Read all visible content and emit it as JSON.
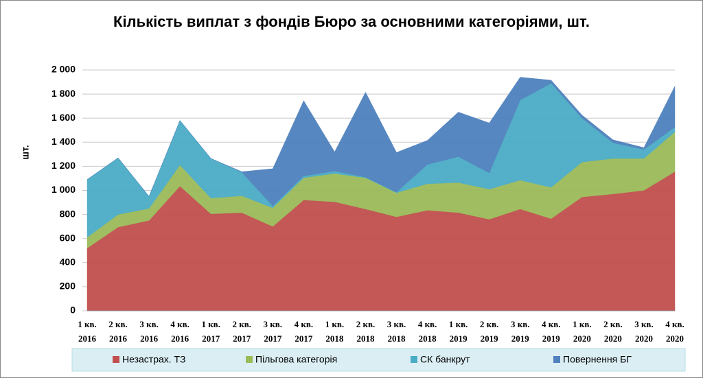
{
  "chart_data": {
    "type": "stacked_area",
    "title": "Кількість виплат з фондів Бюро за основними категоріями, шт.",
    "y_label": "шт.",
    "categories": [
      [
        "1 кв.",
        "2016"
      ],
      [
        "2 кв.",
        "2016"
      ],
      [
        "3 кв.",
        "2016"
      ],
      [
        "4 кв.",
        "2016"
      ],
      [
        "1 кв.",
        "2017"
      ],
      [
        "2 кв.",
        "2017"
      ],
      [
        "3 кв.",
        "2017"
      ],
      [
        "4 кв.",
        "2017"
      ],
      [
        "1 кв.",
        "2018"
      ],
      [
        "2 кв.",
        "2018"
      ],
      [
        "3 кв.",
        "2018"
      ],
      [
        "4 кв.",
        "2018"
      ],
      [
        "1 кв.",
        "2019"
      ],
      [
        "2 кв.",
        "2019"
      ],
      [
        "3 кв.",
        "2019"
      ],
      [
        "4 кв.",
        "2019"
      ],
      [
        "1 кв.",
        "2020"
      ],
      [
        "2 кв.",
        "2020"
      ],
      [
        "3 кв.",
        "2020"
      ],
      [
        "4 кв.",
        "2020"
      ]
    ],
    "series": [
      {
        "name": "Незастрах. ТЗ",
        "color": "#c0504d",
        "values": [
          520,
          695,
          750,
          1035,
          805,
          815,
          700,
          920,
          905,
          845,
          780,
          835,
          815,
          760,
          845,
          765,
          945,
          970,
          1000,
          1155
        ]
      },
      {
        "name": "Пільгова категорія",
        "color": "#9bbb59",
        "values": [
          90,
          105,
          100,
          175,
          130,
          140,
          155,
          185,
          235,
          260,
          200,
          220,
          250,
          250,
          240,
          260,
          290,
          295,
          265,
          330
        ]
      },
      {
        "name": "СК банкрут",
        "color": "#4bacc6",
        "values": [
          480,
          470,
          100,
          370,
          330,
          195,
          15,
          15,
          20,
          5,
          5,
          160,
          215,
          135,
          665,
          865,
          365,
          130,
          75,
          40
        ]
      },
      {
        "name": "Повернення БГ",
        "color": "#4f81bd",
        "values": [
          0,
          0,
          0,
          0,
          0,
          5,
          310,
          625,
          160,
          705,
          330,
          200,
          370,
          415,
          190,
          25,
          25,
          25,
          15,
          340
        ]
      }
    ],
    "ylim": [
      0,
      2000
    ],
    "yticks": [
      0,
      200,
      400,
      600,
      800,
      {
        "value": 1000,
        "label": "1 000"
      },
      {
        "value": 1200,
        "label": "1 200"
      },
      {
        "value": 1400,
        "label": "1 400"
      },
      {
        "value": 1600,
        "label": "1 600"
      },
      {
        "value": 1800,
        "label": "1 800"
      },
      {
        "value": 2000,
        "label": "2 000"
      }
    ],
    "grid": true
  }
}
